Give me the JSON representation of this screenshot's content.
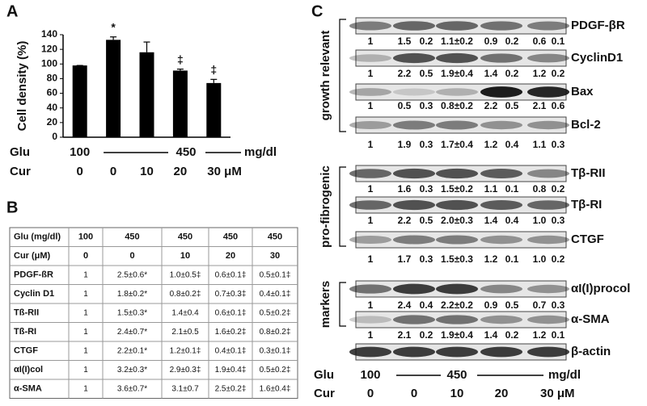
{
  "chart_data": {
    "type": "bar",
    "label": "A",
    "y_label": "Cell density (%)",
    "categories": [
      "0",
      "0",
      "10",
      "20",
      "30 μM"
    ],
    "cur_label": "Cur",
    "glu_label": "Glu",
    "glu_labels": [
      "100",
      "450",
      "mg/dl"
    ],
    "values": [
      98,
      133,
      116,
      91,
      74
    ],
    "errors": [
      0,
      4,
      14,
      2,
      5
    ],
    "annotations": [
      null,
      "*",
      null,
      "‡",
      "‡"
    ],
    "color": "#000000",
    "ylim": [
      0,
      140
    ],
    "yticks": [
      0,
      20,
      40,
      60,
      80,
      100,
      120,
      140
    ]
  },
  "table": {
    "label": "B",
    "header": [
      [
        "Glu (mg/dl)",
        "100",
        "450",
        "450",
        "450",
        "450"
      ],
      [
        "Cur (μM)",
        "0",
        "0",
        "10",
        "20",
        "30"
      ]
    ],
    "rows": [
      [
        "PDGF-ßR",
        "1",
        "2.5±0.6*",
        "1.0±0.5‡",
        "0.6±0.1‡",
        "0.5±0.1‡"
      ],
      [
        "Cyclin D1",
        "1",
        "1.8±0.2*",
        "0.8±0.2‡",
        "0.7±0.3‡",
        "0.4±0.1‡"
      ],
      [
        "Tß-RII",
        "1",
        "1.5±0.3*",
        "1.4±0.4",
        "0.6±0.1‡",
        "0.5±0.2‡"
      ],
      [
        "Tß-RI",
        "1",
        "2.4±0.7*",
        "2.1±0.5",
        "1.6±0.2‡",
        "0.8±0.2‡"
      ],
      [
        "CTGF",
        "1",
        "2.2±0.1*",
        "1.2±0.1‡",
        "0.4±0.1‡",
        "0.3±0.1‡"
      ],
      [
        "αI(I)col",
        "1",
        "3.2±0.3*",
        "2.9±0.3‡",
        "1.9±0.4‡",
        "0.5±0.2‡"
      ],
      [
        "α-SMA",
        "1",
        "3.6±0.7*",
        "3.1±0.7",
        "2.5±0.2‡",
        "1.6±0.4‡"
      ]
    ]
  },
  "blots": {
    "label": "C",
    "groups": [
      {
        "label": "growth relevant",
        "items": [
          {
            "name": "PDGF-βR",
            "quant": [
              "1",
              "1.5",
              "0.2",
              "1.1±0.2",
              "0.9",
              "0.2",
              "0.6",
              "0.1"
            ]
          },
          {
            "name": "CyclinD1",
            "quant": [
              "1",
              "2.2",
              "0.5",
              "1.9±0.4",
              "1.4",
              "0.2",
              "1.2",
              "0.2"
            ]
          },
          {
            "name": "Bax",
            "quant": [
              "1",
              "0.5",
              "0.3",
              "0.8±0.2",
              "2.2",
              "0.5",
              "2.1",
              "0.6"
            ]
          },
          {
            "name": "Bcl-2",
            "quant": [
              "1",
              "1.9",
              "0.3",
              "1.7±0.4",
              "1.2",
              "0.4",
              "1.1",
              "0.3"
            ]
          }
        ]
      },
      {
        "label": "pro-fibrogenic",
        "items": [
          {
            "name": "Tβ-RII",
            "quant": [
              "1",
              "1.6",
              "0.3",
              "1.5±0.2",
              "1.1",
              "0.1",
              "0.8",
              "0.2"
            ]
          },
          {
            "name": "Tβ-RI",
            "quant": [
              "1",
              "2.2",
              "0.5",
              "2.0±0.3",
              "1.4",
              "0.4",
              "1.0",
              "0.3"
            ]
          },
          {
            "name": "CTGF",
            "quant": [
              "1",
              "1.7",
              "0.3",
              "1.5±0.3",
              "1.2",
              "0.1",
              "1.0",
              "0.2"
            ]
          }
        ]
      },
      {
        "label": "markers",
        "items": [
          {
            "name": "αI(I)procol",
            "quant": [
              "1",
              "2.4",
              "0.4",
              "2.2±0.2",
              "0.9",
              "0.5",
              "0.7",
              "0.3"
            ]
          },
          {
            "name": "α-SMA",
            "quant": [
              "1",
              "2.1",
              "0.2",
              "1.9±0.4",
              "1.4",
              "0.2",
              "1.2",
              "0.1"
            ]
          }
        ]
      }
    ],
    "loading_control": "β-actin",
    "glu_label": "Glu",
    "glu_labels": [
      "100",
      "450",
      "mg/dl"
    ],
    "cur_label": "Cur",
    "cur_labels": [
      "0",
      "0",
      "10",
      "20",
      "30 μM"
    ]
  }
}
